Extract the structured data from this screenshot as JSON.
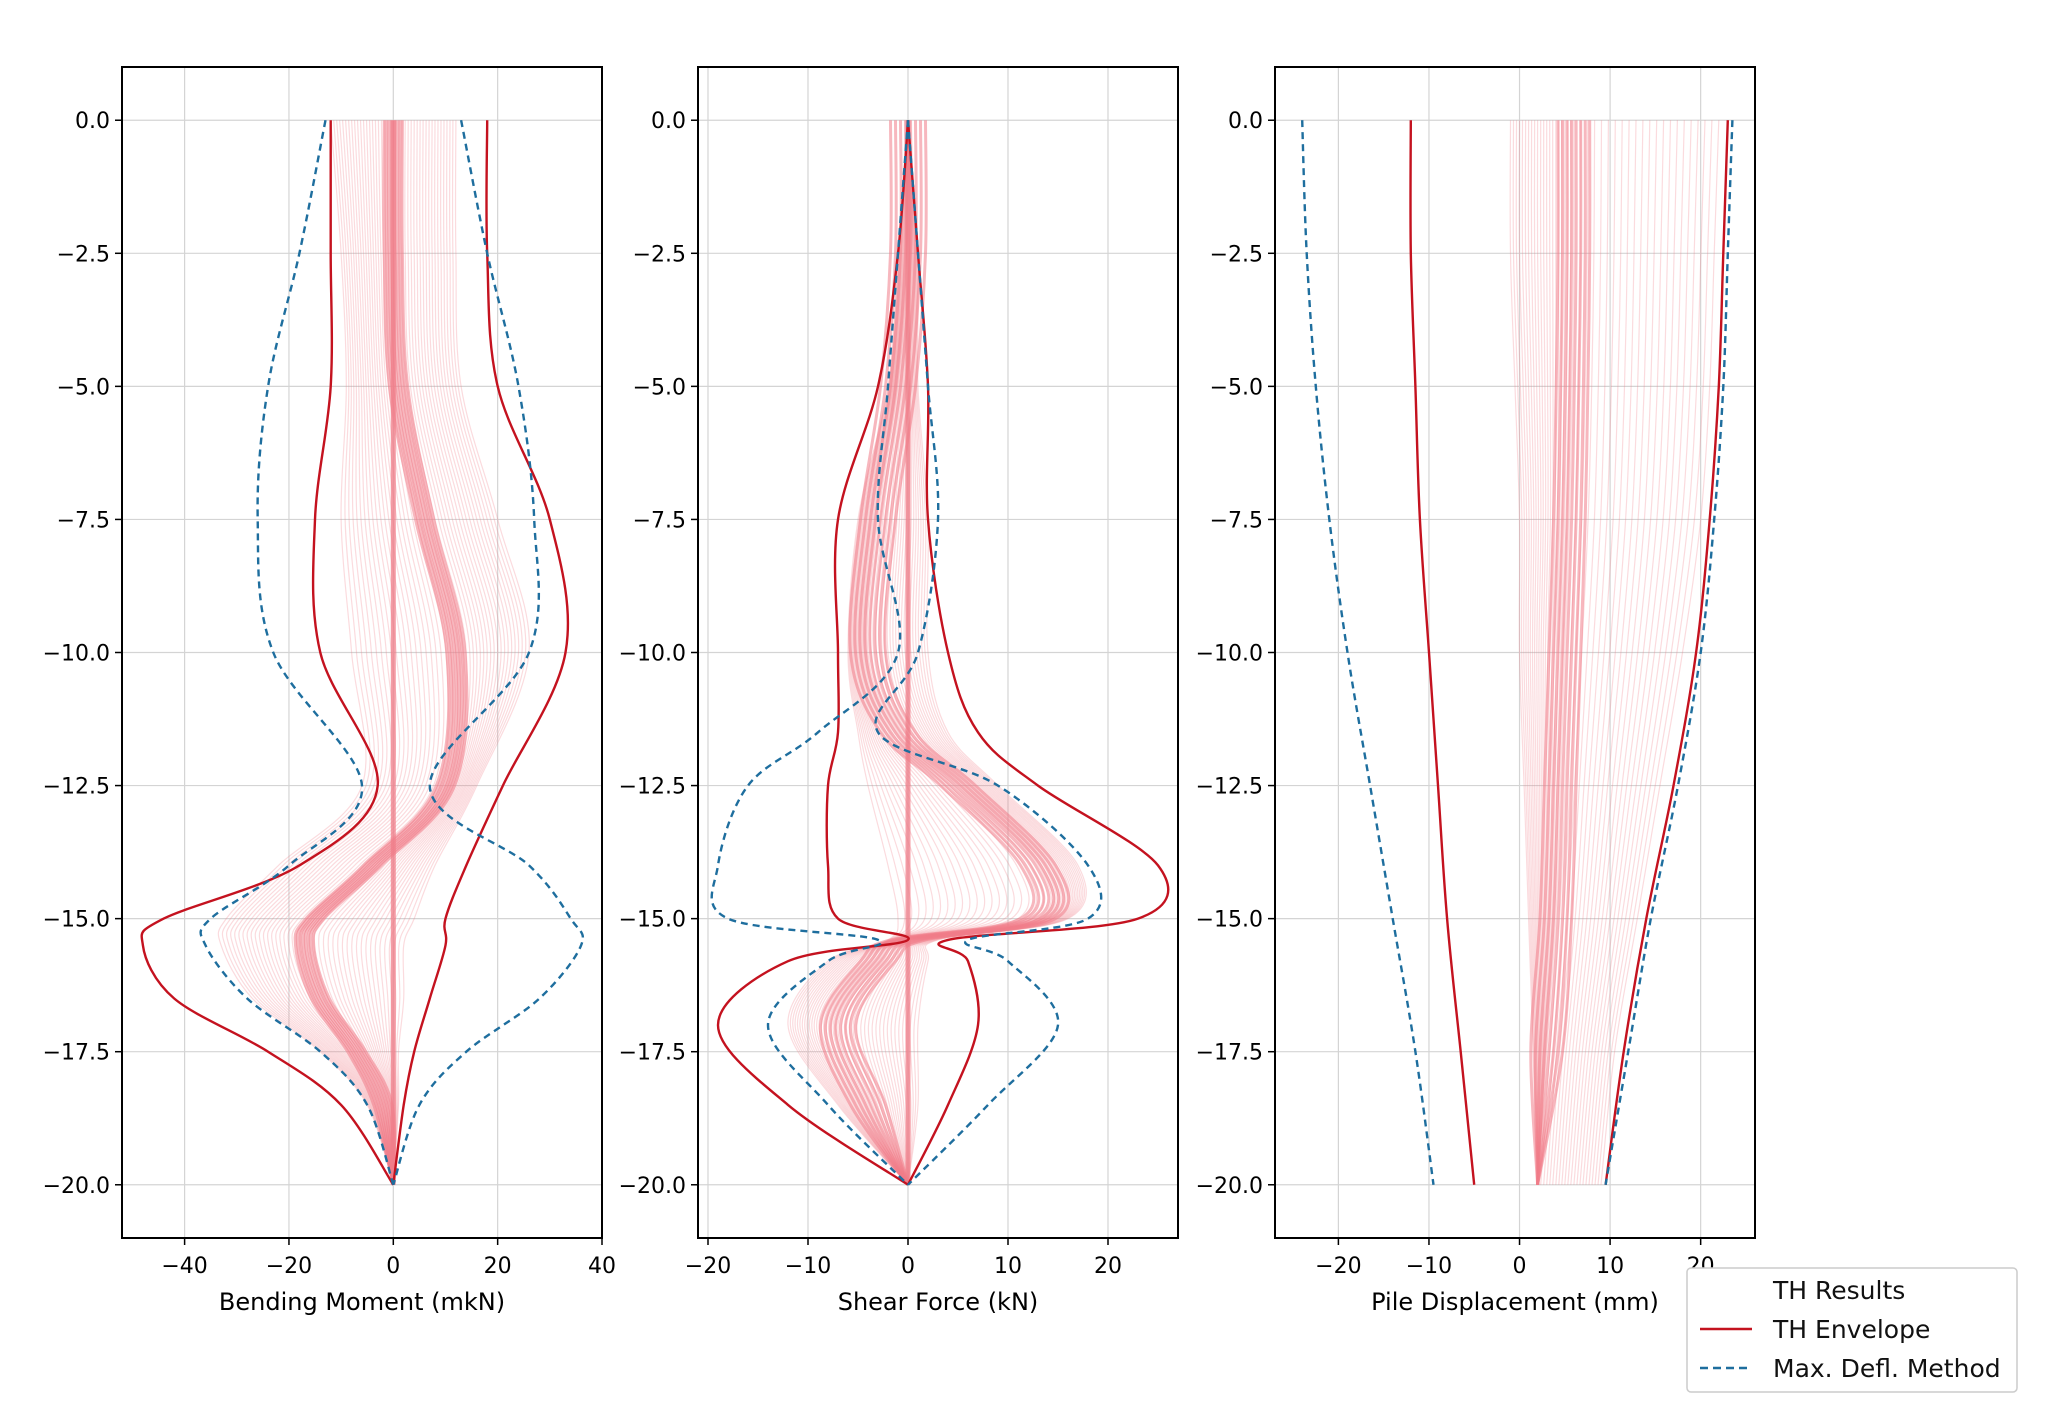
{
  "colors": {
    "th_results": "#f07c88",
    "th_envelope": "#c4121f",
    "max_defl": "#1e6e9e",
    "grid": "#d4d4d4",
    "frame": "#000000"
  },
  "legend": {
    "placement": "lower-right",
    "items": [
      {
        "label": "TH Results",
        "style": "none"
      },
      {
        "label": "TH Envelope",
        "style": "solid"
      },
      {
        "label": "Max. Defl. Method",
        "style": "dashed"
      }
    ]
  },
  "chart_data": [
    {
      "type": "line",
      "xlabel": "Bending Moment (mkN)",
      "xlim": [
        -52,
        40
      ],
      "ylim": [
        -21,
        1
      ],
      "xticks": [
        -40,
        -20,
        0,
        20,
        40
      ],
      "xtick_labels": [
        "−40",
        "−20",
        "0",
        "20",
        "40"
      ],
      "yticks": [
        0,
        -2.5,
        -5,
        -7.5,
        -10,
        -12.5,
        -15,
        -17.5,
        -20
      ],
      "ytick_labels": [
        "0.0",
        "−2.5",
        "−5.0",
        "−7.5",
        "−10.0",
        "−12.5",
        "−15.0",
        "−17.5",
        "−20.0"
      ],
      "grid": true,
      "depth": [
        0,
        -2.5,
        -5,
        -7.5,
        -10,
        -12.5,
        -14,
        -15,
        -15.5,
        -16.5,
        -17.5,
        -18.5,
        -20
      ],
      "series": [
        {
          "name": "TH Envelope",
          "style": "solid",
          "x": [
            -12,
            -12,
            -12,
            -15,
            -14,
            -3,
            -18,
            -44,
            -48,
            -42,
            -24,
            -10,
            0
          ]
        },
        {
          "name": "TH Envelope",
          "style": "solid",
          "x": [
            18,
            18,
            20,
            30,
            33,
            21,
            14,
            10,
            10,
            7,
            4,
            2,
            0
          ]
        },
        {
          "name": "Max. Defl. Method",
          "style": "dashed",
          "x": [
            -13,
            -18,
            -24,
            -26,
            -23,
            -6,
            -20,
            -35,
            -36,
            -28,
            -14,
            -5,
            0
          ]
        },
        {
          "name": "Max. Defl. Method",
          "style": "dashed",
          "x": [
            13,
            18,
            24,
            27,
            26,
            7,
            26,
            34,
            36,
            28,
            14,
            5,
            0
          ]
        }
      ],
      "th_results_band": {
        "lower": [
          -12,
          -10,
          -9,
          -10,
          -8,
          -6,
          -22,
          -32,
          -33,
          -27,
          -14,
          -5,
          0
        ],
        "center": [
          0,
          0,
          1,
          6,
          12,
          10,
          -4,
          -15,
          -17,
          -14,
          -7,
          -2,
          0
        ],
        "upper": [
          12,
          12,
          13,
          20,
          26,
          16,
          8,
          4,
          2,
          2,
          1,
          1,
          0
        ]
      }
    },
    {
      "type": "line",
      "xlabel": "Shear Force (kN)",
      "xlim": [
        -21,
        27
      ],
      "ylim": [
        -21,
        1
      ],
      "xticks": [
        -20,
        -10,
        0,
        10,
        20
      ],
      "xtick_labels": [
        "−20",
        "−10",
        "0",
        "10",
        "20"
      ],
      "yticks": [
        0,
        -2.5,
        -5,
        -7.5,
        -10,
        -12.5,
        -15,
        -17.5,
        -20
      ],
      "ytick_labels": [
        "0.0",
        "−2.5",
        "−5.0",
        "−7.5",
        "−10.0",
        "−12.5",
        "−15.0",
        "−17.5",
        "−20.0"
      ],
      "grid": true,
      "depth": [
        0,
        -2.5,
        -5,
        -7.5,
        -10,
        -11.5,
        -12.5,
        -14,
        -15,
        -15.4,
        -15.8,
        -17,
        -18.5,
        -20
      ],
      "series": [
        {
          "name": "TH Envelope",
          "style": "solid",
          "x": [
            0,
            -1,
            -3,
            -7,
            -7,
            -7,
            -8,
            -8,
            -7,
            0,
            -12,
            -19,
            -12,
            0
          ]
        },
        {
          "name": "TH Envelope",
          "style": "solid",
          "x": [
            0,
            1,
            2,
            2,
            4,
            7,
            13,
            25,
            23,
            4,
            6,
            7,
            4,
            0
          ]
        },
        {
          "name": "Max. Defl. Method",
          "style": "dashed",
          "x": [
            0,
            -1,
            -2,
            -3,
            -1,
            -9,
            -16,
            -19,
            -18,
            -3,
            -8,
            -14,
            -8,
            0
          ]
        },
        {
          "name": "Max. Defl. Method",
          "style": "dashed",
          "x": [
            0,
            1,
            2,
            3,
            1,
            -3,
            9,
            18,
            18,
            6,
            10,
            15,
            8,
            0
          ]
        }
      ],
      "th_results_band": {
        "lower": [
          0,
          -1,
          -2,
          -5,
          -6,
          -5,
          -4,
          -2,
          -1,
          -2,
          -8,
          -12,
          -7,
          0
        ],
        "center": [
          0,
          0,
          -1,
          -3,
          -4,
          -1,
          5,
          13,
          13,
          0,
          -3,
          -7,
          -4,
          0
        ],
        "upper": [
          0,
          1,
          1,
          2,
          2,
          4,
          9,
          17,
          16,
          3,
          2,
          1,
          1,
          0
        ]
      }
    },
    {
      "type": "line",
      "xlabel": "Pile Displacement (mm)",
      "xlim": [
        -27,
        26
      ],
      "ylim": [
        -21,
        1
      ],
      "xticks": [
        -20,
        -10,
        0,
        10,
        20
      ],
      "xtick_labels": [
        "−20",
        "−10",
        "0",
        "10",
        "20"
      ],
      "yticks": [
        0,
        -2.5,
        -5,
        -7.5,
        -10,
        -12.5,
        -15,
        -17.5,
        -20
      ],
      "ytick_labels": [
        "0.0",
        "−2.5",
        "−5.0",
        "−7.5",
        "−10.0",
        "−12.5",
        "−15.0",
        "−17.5",
        "−20.0"
      ],
      "grid": true,
      "depth": [
        0,
        -2.5,
        -5,
        -7.5,
        -10,
        -12.5,
        -15,
        -17.5,
        -20
      ],
      "series": [
        {
          "name": "TH Envelope",
          "style": "solid",
          "x": [
            -12,
            -12,
            -11.5,
            -11,
            -10,
            -9,
            -8,
            -6.5,
            -5
          ]
        },
        {
          "name": "TH Envelope",
          "style": "solid",
          "x": [
            23,
            22.5,
            22,
            21,
            19.5,
            17,
            14,
            11.5,
            9.5
          ]
        },
        {
          "name": "Max. Defl. Method",
          "style": "dashed",
          "x": [
            -24,
            -23.5,
            -22.5,
            -21,
            -19,
            -16.5,
            -14,
            -11.5,
            -9.5
          ]
        },
        {
          "name": "Max. Defl. Method",
          "style": "dashed",
          "x": [
            23.5,
            23,
            22.5,
            21.5,
            20,
            17.5,
            14.5,
            12,
            9.5
          ]
        }
      ],
      "th_results_band": {
        "lower": [
          -1,
          -1,
          -0.5,
          0,
          0,
          0.5,
          1,
          1.5,
          2
        ],
        "center": [
          6,
          6,
          5.8,
          5.5,
          5,
          4.5,
          4,
          3,
          2
        ],
        "upper": [
          22,
          21.5,
          21,
          20,
          18,
          15.5,
          13,
          10.5,
          9
        ]
      }
    }
  ]
}
